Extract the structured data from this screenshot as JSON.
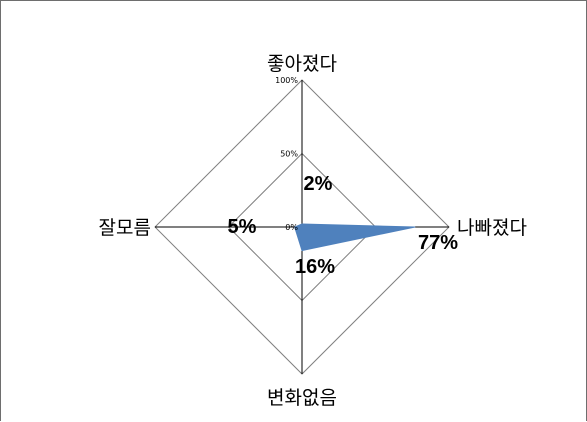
{
  "chart_data": {
    "type": "radar",
    "categories": [
      "좋아졌다",
      "나빠졌다",
      "변화없음",
      "잘모름"
    ],
    "values": [
      2,
      77,
      16,
      5
    ],
    "data_labels": [
      "2%",
      "77%",
      "16%",
      "5%"
    ],
    "rlim": [
      0,
      100
    ],
    "ticks": [
      0,
      50,
      100
    ],
    "tick_labels": [
      "0%",
      "50%",
      "100%"
    ],
    "legend": "none",
    "colors": {
      "series": "#4f81bd",
      "grid": "#808080"
    }
  }
}
